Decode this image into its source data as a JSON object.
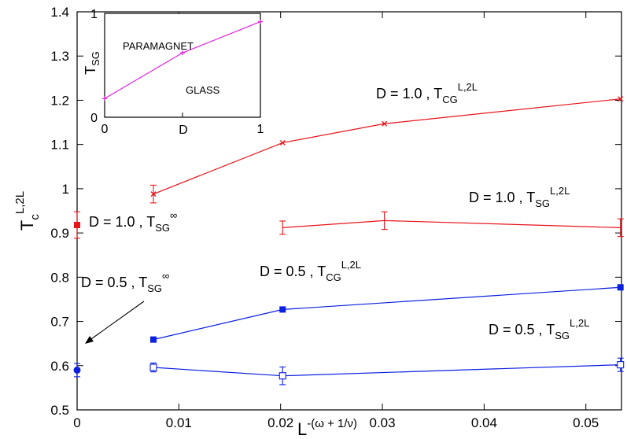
{
  "colors": {
    "red": "#e8141a",
    "blue": "#0a1fe0",
    "magenta": "#e020e0",
    "black": "#000000"
  },
  "chart_data": [
    {
      "type": "line",
      "title": "",
      "xlabel": {
        "base": "L",
        "sup": "-(ω + 1/ν)"
      },
      "ylabel": {
        "base": "T",
        "sub": "c",
        "sup": "L,2L"
      },
      "xlim": [
        0,
        0.0535
      ],
      "ylim": [
        0.5,
        1.4
      ],
      "xticks": [
        "0",
        "0.01",
        "0.02",
        "0.03",
        "0.04",
        "0.05"
      ],
      "yticks": [
        "0.5",
        "0.6",
        "0.7",
        "0.8",
        "0.9",
        "1",
        "1.1",
        "1.2",
        "1.3",
        "1.4"
      ],
      "grid": false,
      "series": [
        {
          "name": "D = 1.0 , T_CG^L,2L",
          "label": {
            "prefix": "D = 1.0 , T",
            "sub": "CG",
            "sup": "L,2L"
          },
          "color": "#e8141a",
          "marker": "x",
          "connected": true,
          "x": [
            0.0075,
            0.0202,
            0.0302,
            0.0534
          ],
          "y": [
            0.988,
            1.104,
            1.147,
            1.203
          ],
          "err": [
            0.02,
            0.0,
            0.0,
            0.0
          ]
        },
        {
          "name": "D = 1.0 , T_SG^L,2L",
          "label": {
            "prefix": "D = 1.0 , T",
            "sub": "SG",
            "sup": "L,2L"
          },
          "color": "#e8141a",
          "marker": "none",
          "connected": true,
          "x": [
            0.0202,
            0.0302,
            0.0534
          ],
          "y": [
            0.912,
            0.928,
            0.912
          ],
          "err": [
            0.015,
            0.02,
            0.02
          ]
        },
        {
          "name": "D = 0.5 , T_CG^L,2L",
          "label": {
            "prefix": "D = 0.5 , T",
            "sub": "CG",
            "sup": "L,2L"
          },
          "color": "#0a1fe0",
          "marker": "filled-square",
          "connected": true,
          "x": [
            0.0075,
            0.0202,
            0.0534
          ],
          "y": [
            0.659,
            0.727,
            0.777
          ],
          "err": [
            0,
            0,
            0
          ]
        },
        {
          "name": "D = 0.5 , T_SG^L,2L",
          "label": {
            "prefix": "D = 0.5 , T",
            "sub": "SG",
            "sup": "L,2L"
          },
          "color": "#0a1fe0",
          "marker": "open-square",
          "connected": true,
          "x": [
            0.0075,
            0.0202,
            0.0534
          ],
          "y": [
            0.596,
            0.577,
            0.602
          ],
          "err": [
            0.01,
            0.02,
            0.015
          ]
        },
        {
          "name": "D = 1.0 , T_SG^∞",
          "label": {
            "prefix": "D = 1.0 , T",
            "sub": "SG",
            "sup": "∞"
          },
          "color": "#e8141a",
          "marker": "filled-square",
          "connected": false,
          "x": [
            0.0
          ],
          "y": [
            0.918
          ],
          "err": [
            0.03
          ]
        },
        {
          "name": "D = 0.5 , T_SG^∞",
          "label": {
            "prefix": "D = 0.5 , T",
            "sub": "SG",
            "sup": "∞"
          },
          "color": "#0a1fe0",
          "marker": "filled-circle",
          "connected": false,
          "x": [
            0.0
          ],
          "y": [
            0.59
          ],
          "err": [
            0.015
          ]
        }
      ]
    },
    {
      "type": "line",
      "title": "",
      "xlabel": "D",
      "ylabel": {
        "base": "T",
        "sub": "SG"
      },
      "xlim": [
        0,
        1
      ],
      "ylim": [
        0,
        1
      ],
      "xticks": [
        "0",
        "1"
      ],
      "yticks": [
        "0",
        "1"
      ],
      "annotations": [
        "PARAMAGNET",
        "GLASS"
      ],
      "series": [
        {
          "color": "#e020e0",
          "marker": "plus",
          "x": [
            0.0,
            0.5,
            1.0
          ],
          "y": [
            0.18,
            0.62,
            0.92
          ]
        }
      ]
    }
  ]
}
